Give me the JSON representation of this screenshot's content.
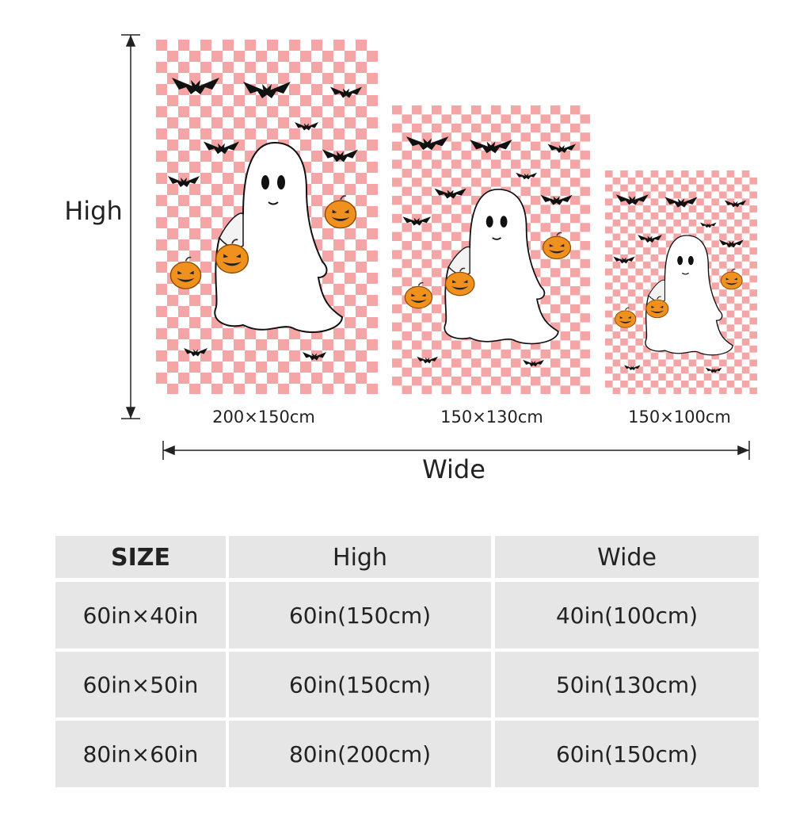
{
  "diagram": {
    "height_label": "High",
    "width_label": "Wide",
    "sizes": [
      "200×150cm",
      "150×130cm",
      "150×100cm"
    ]
  },
  "table": {
    "header": [
      "SIZE",
      "High",
      "Wide"
    ],
    "rows": [
      [
        "60in×40in",
        "60in(150cm)",
        "40in(100cm)"
      ],
      [
        "60in×50in",
        "60in(150cm)",
        "50in(130cm)"
      ],
      [
        "80in×60in",
        "80in(200cm)",
        "60in(150cm)"
      ]
    ]
  }
}
